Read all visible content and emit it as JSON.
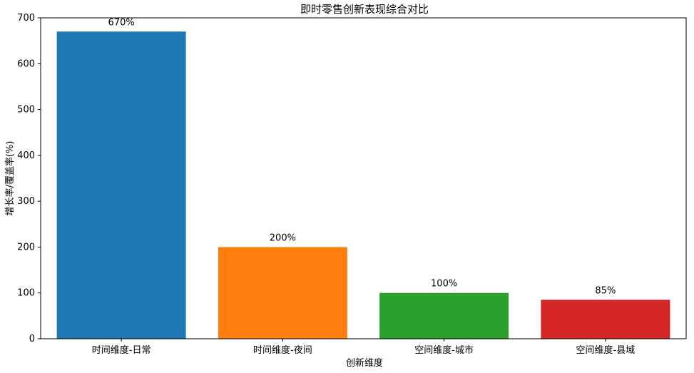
{
  "chart_data": {
    "type": "bar",
    "title": "即时零售创新表现综合对比",
    "xlabel": "创新维度",
    "ylabel": "增长率/覆盖率(%)",
    "categories": [
      "时间维度-日常",
      "时间维度-夜间",
      "空间维度-城市",
      "空间维度-县域"
    ],
    "values": [
      670,
      200,
      100,
      85
    ],
    "value_labels": [
      "670%",
      "200%",
      "100%",
      "85%"
    ],
    "colors": [
      "#1f77b4",
      "#ff7f0e",
      "#2ca02c",
      "#d62728"
    ],
    "ylim": [
      0,
      700
    ],
    "yticks": [
      0,
      100,
      200,
      300,
      400,
      500,
      600,
      700
    ],
    "ytick_labels": [
      "0",
      "100",
      "200",
      "300",
      "400",
      "500",
      "600",
      "700"
    ],
    "grid": false,
    "legend": "none"
  }
}
